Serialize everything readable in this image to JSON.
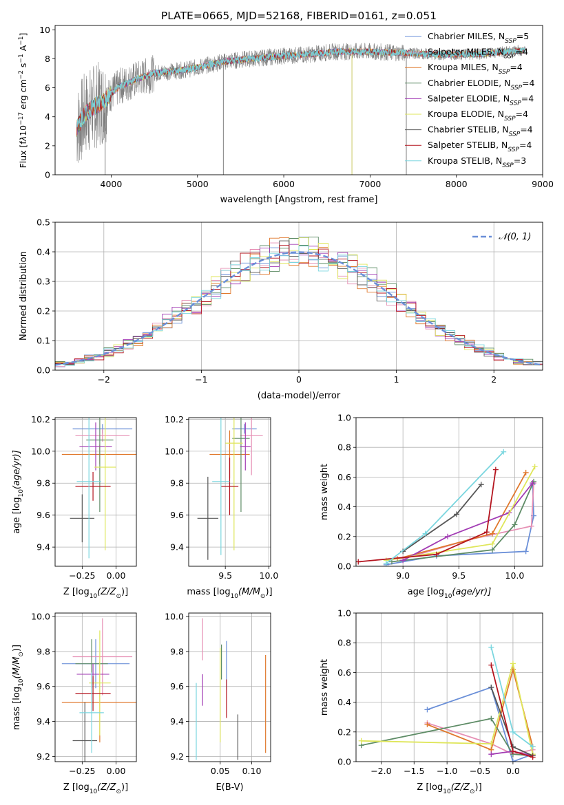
{
  "chart_data": [
    {
      "id": "spectrum",
      "type": "line",
      "title": "PLATE=0665, MJD=52168, FIBERID=0161, z=0.051",
      "xlabel": "wavelength [Angstrom, rest frame]",
      "ylabel_parts": [
        "Flux [f",
        "λ",
        "10",
        "−17",
        " erg cm",
        "−2",
        " s",
        "−1",
        " A",
        "−1",
        "]"
      ],
      "xlim": [
        3350,
        9000
      ],
      "ylim": [
        0,
        10.3
      ],
      "xticks": [
        4000,
        5000,
        6000,
        7000,
        8000,
        9000
      ],
      "yticks": [
        0,
        2,
        4,
        6,
        8,
        10
      ],
      "grid": false,
      "legend_position": "upper-right",
      "continuum": [
        [
          3600,
          3.2
        ],
        [
          3700,
          4.2
        ],
        [
          3800,
          4.7
        ],
        [
          3900,
          5.0
        ],
        [
          4000,
          5.6
        ],
        [
          4100,
          6.1
        ],
        [
          4300,
          6.6
        ],
        [
          4500,
          7.0
        ],
        [
          4800,
          7.2
        ],
        [
          5000,
          7.4
        ],
        [
          5300,
          7.8
        ],
        [
          5600,
          8.0
        ],
        [
          6000,
          8.2
        ],
        [
          6300,
          8.3
        ],
        [
          6600,
          8.5
        ],
        [
          7000,
          8.5
        ],
        [
          7400,
          8.4
        ],
        [
          7800,
          8.3
        ],
        [
          8200,
          8.3
        ],
        [
          8600,
          8.5
        ],
        [
          8800,
          8.6
        ]
      ],
      "legend": [
        {
          "main": "Chabrier MILES, N",
          "sub": "SSP",
          "tail": "=5",
          "color": "#6a8fd8"
        },
        {
          "main": "Salpeter MILES, N",
          "sub": "SSP",
          "tail": "=4",
          "color": "#e68fb4"
        },
        {
          "main": "Kroupa MILES, N",
          "sub": "SSP",
          "tail": "=4",
          "color": "#e0782c"
        },
        {
          "main": "Chabrier ELODIE, N",
          "sub": "SSP",
          "tail": "=4",
          "color": "#5e8c66"
        },
        {
          "main": "Salpeter ELODIE, N",
          "sub": "SSP",
          "tail": "=4",
          "color": "#a23cb4"
        },
        {
          "main": "Kroupa ELODIE, N",
          "sub": "SSP",
          "tail": "=4",
          "color": "#dfe65a"
        },
        {
          "main": "Chabrier STELIB, N",
          "sub": "SSP",
          "tail": "=4",
          "color": "#555555"
        },
        {
          "main": "Salpeter STELIB, N",
          "sub": "SSP",
          "tail": "=4",
          "color": "#b4141e"
        },
        {
          "main": "Kroupa STELIB, N",
          "sub": "SSP",
          "tail": "=3",
          "color": "#7ad6df"
        }
      ]
    },
    {
      "id": "residuals",
      "type": "line",
      "xlabel": "(data-model)/error",
      "ylabel": "Normed distribution",
      "xlim": [
        -2.5,
        2.5
      ],
      "ylim": [
        0,
        0.5
      ],
      "xticks": [
        -2,
        -1,
        0,
        1,
        2
      ],
      "yticks": [
        0.0,
        0.1,
        0.2,
        0.3,
        0.4,
        0.5
      ],
      "grid": true,
      "legend_position": "upper-right",
      "legend_math": "𝒩(0, 1)",
      "gaussian": {
        "mean": 0,
        "sigma": 1,
        "color": "#6a8fd8"
      },
      "bin_width": 0.1,
      "histogram_base": [
        0.02,
        0.022,
        0.025,
        0.03,
        0.035,
        0.04,
        0.047,
        0.055,
        0.063,
        0.072,
        0.082,
        0.093,
        0.105,
        0.118,
        0.132,
        0.147,
        0.163,
        0.18,
        0.197,
        0.215,
        0.233,
        0.25,
        0.27,
        0.29,
        0.31,
        0.33,
        0.35,
        0.37,
        0.385,
        0.4,
        0.42,
        0.43,
        0.44,
        0.445,
        0.43,
        0.42,
        0.41,
        0.39,
        0.37,
        0.35,
        0.33,
        0.31,
        0.29,
        0.27,
        0.25,
        0.23,
        0.21,
        0.19,
        0.17,
        0.15,
        0.13,
        0.115,
        0.1,
        0.088,
        0.077,
        0.067,
        0.058,
        0.05,
        0.043,
        0.037,
        0.032,
        0.028,
        0.025,
        0.022,
        0.02,
        0.03,
        0.025,
        0.04,
        0.02,
        0.02
      ]
    },
    {
      "id": "age-vs-Z",
      "type": "scatter",
      "xlabel_parts": [
        "Z [log",
        "10",
        "(Z/Z",
        "⊙",
        ")]"
      ],
      "ylabel_parts": [
        "age  [log",
        "10",
        "(age/yr)]"
      ],
      "xlim": [
        -0.45,
        0.15
      ],
      "ylim": [
        9.28,
        10.21
      ],
      "xticks": [
        -0.25,
        0.0
      ],
      "xticklabels": [
        "−0.25",
        "0.00"
      ],
      "yticks": [
        9.4,
        9.6,
        9.8,
        10.0,
        10.2
      ],
      "grid": true,
      "points": [
        {
          "x": -0.1,
          "y": 10.14,
          "xerr": 0.22,
          "yerr": 0.03,
          "color": "#6a8fd8"
        },
        {
          "x": -0.1,
          "y": 10.1,
          "xerr": 0.2,
          "yerr": 0.04,
          "color": "#e68fb4"
        },
        {
          "x": -0.12,
          "y": 9.98,
          "xerr": 0.28,
          "yerr": 0.06,
          "color": "#e0782c"
        },
        {
          "x": -0.12,
          "y": 10.07,
          "xerr": 0.1,
          "yerr": 0.45,
          "color": "#5e8c66"
        },
        {
          "x": -0.15,
          "y": 10.03,
          "xerr": 0.12,
          "yerr": 0.15,
          "color": "#a23cb4"
        },
        {
          "x": -0.08,
          "y": 9.9,
          "xerr": 0.08,
          "yerr": 0.52,
          "color": "#dfe65a"
        },
        {
          "x": -0.25,
          "y": 9.58,
          "xerr": 0.09,
          "yerr": 0.15,
          "color": "#555555"
        },
        {
          "x": -0.17,
          "y": 9.78,
          "xerr": 0.13,
          "yerr": 0.09,
          "color": "#b4141e"
        },
        {
          "x": -0.2,
          "y": 9.81,
          "xerr": 0.09,
          "yerr": 0.48,
          "color": "#7ad6df"
        }
      ]
    },
    {
      "id": "age-vs-mass",
      "type": "scatter",
      "xlabel_parts": [
        "mass [log",
        "10",
        "(M/M",
        "⊙",
        ")]"
      ],
      "ylabel_parts": [],
      "xlim": [
        9.08,
        10.02
      ],
      "ylim": [
        9.28,
        10.21
      ],
      "xticks": [
        9.5,
        10.0
      ],
      "xticklabels": [
        "9.5",
        "10.0"
      ],
      "yticks": [
        9.4,
        9.6,
        9.8,
        10.0,
        10.2
      ],
      "grid": true,
      "points": [
        {
          "x": 9.72,
          "y": 10.14,
          "xerr": 0.14,
          "yerr": 0.03,
          "color": "#6a8fd8"
        },
        {
          "x": 9.8,
          "y": 10.1,
          "xerr": 0.13,
          "yerr": 0.25,
          "color": "#e68fb4"
        },
        {
          "x": 9.55,
          "y": 9.98,
          "xerr": 0.23,
          "yerr": 0.15,
          "color": "#e0782c"
        },
        {
          "x": 9.68,
          "y": 10.08,
          "xerr": 0.1,
          "yerr": 0.46,
          "color": "#5e8c66"
        },
        {
          "x": 9.73,
          "y": 10.03,
          "xerr": 0.06,
          "yerr": 0.15,
          "color": "#a23cb4"
        },
        {
          "x": 9.6,
          "y": 10.05,
          "xerr": 0.1,
          "yerr": 0.67,
          "color": "#dfe65a"
        },
        {
          "x": 9.3,
          "y": 9.58,
          "xerr": 0.12,
          "yerr": 0.26,
          "color": "#555555"
        },
        {
          "x": 9.55,
          "y": 9.78,
          "xerr": 0.1,
          "yerr": 0.18,
          "color": "#b4141e"
        },
        {
          "x": 9.45,
          "y": 9.81,
          "xerr": 0.1,
          "yerr": 0.46,
          "color": "#7ad6df"
        }
      ]
    },
    {
      "id": "weight-vs-age",
      "type": "line",
      "xlabel_parts": [
        "age  [log",
        "10",
        "(age/yr)]"
      ],
      "ylabel": "mass weight",
      "xlim": [
        8.58,
        10.25
      ],
      "ylim": [
        0,
        1.0
      ],
      "xticks": [
        9.0,
        9.5,
        10.0
      ],
      "xticklabels": [
        "9.0",
        "9.5",
        "10.0"
      ],
      "yticks": [
        0.0,
        0.2,
        0.4,
        0.6,
        0.8,
        1.0
      ],
      "grid": true,
      "series": [
        {
          "color": "#6a8fd8",
          "points": [
            [
              8.85,
              0.01
            ],
            [
              9.3,
              0.07
            ],
            [
              10.1,
              0.1
            ],
            [
              10.17,
              0.34
            ],
            [
              10.16,
              0.55
            ]
          ]
        },
        {
          "color": "#e68fb4",
          "points": [
            [
              9.0,
              0.05
            ],
            [
              9.6,
              0.18
            ],
            [
              10.15,
              0.27
            ],
            [
              10.17,
              0.56
            ]
          ]
        },
        {
          "color": "#e0782c",
          "points": [
            [
              8.95,
              0.05
            ],
            [
              9.8,
              0.22
            ],
            [
              10.1,
              0.63
            ]
          ]
        },
        {
          "color": "#5e8c66",
          "points": [
            [
              8.9,
              0.03
            ],
            [
              9.8,
              0.11
            ],
            [
              10.0,
              0.28
            ],
            [
              10.17,
              0.57
            ]
          ]
        },
        {
          "color": "#a23cb4",
          "points": [
            [
              9.0,
              0.04
            ],
            [
              9.4,
              0.2
            ],
            [
              9.95,
              0.36
            ],
            [
              10.16,
              0.56
            ]
          ]
        },
        {
          "color": "#dfe65a",
          "points": [
            [
              8.85,
              0.04
            ],
            [
              9.8,
              0.15
            ],
            [
              10.18,
              0.67
            ]
          ]
        },
        {
          "color": "#555555",
          "points": [
            [
              9.0,
              0.1
            ],
            [
              9.48,
              0.35
            ],
            [
              9.7,
              0.55
            ]
          ]
        },
        {
          "color": "#b4141e",
          "points": [
            [
              8.6,
              0.03
            ],
            [
              9.3,
              0.08
            ],
            [
              9.75,
              0.23
            ],
            [
              9.83,
              0.65
            ]
          ]
        },
        {
          "color": "#7ad6df",
          "points": [
            [
              8.85,
              0.02
            ],
            [
              9.2,
              0.22
            ],
            [
              9.9,
              0.77
            ]
          ]
        }
      ]
    },
    {
      "id": "mass-vs-Z",
      "type": "scatter",
      "xlabel_parts": [
        "Z [log",
        "10",
        "(Z/Z",
        "⊙",
        ")]"
      ],
      "ylabel_parts": [
        "mass [log",
        "10",
        "(M/M",
        "⊙",
        ")]"
      ],
      "xlim": [
        -0.45,
        0.15
      ],
      "ylim": [
        9.17,
        10.02
      ],
      "xticks": [
        -0.25,
        0.0
      ],
      "xticklabels": [
        "−0.25",
        "0.00"
      ],
      "yticks": [
        9.2,
        9.4,
        9.6,
        9.8,
        10.0
      ],
      "grid": true,
      "points": [
        {
          "x": -0.15,
          "y": 9.73,
          "xerr": 0.25,
          "yerr": 0.14,
          "color": "#6a8fd8"
        },
        {
          "x": -0.1,
          "y": 9.77,
          "xerr": 0.22,
          "yerr": 0.22,
          "color": "#e68fb4"
        },
        {
          "x": -0.12,
          "y": 9.51,
          "xerr": 0.28,
          "yerr": 0.23,
          "color": "#e0782c"
        },
        {
          "x": -0.18,
          "y": 9.73,
          "xerr": 0.12,
          "yerr": 0.14,
          "color": "#5e8c66"
        },
        {
          "x": -0.17,
          "y": 9.67,
          "xerr": 0.12,
          "yerr": 0.06,
          "color": "#a23cb4"
        },
        {
          "x": -0.12,
          "y": 9.62,
          "xerr": 0.08,
          "yerr": 0.3,
          "color": "#dfe65a"
        },
        {
          "x": -0.23,
          "y": 9.29,
          "xerr": 0.09,
          "yerr": 0.22,
          "color": "#555555"
        },
        {
          "x": -0.17,
          "y": 9.56,
          "xerr": 0.13,
          "yerr": 0.1,
          "color": "#b4141e"
        },
        {
          "x": -0.18,
          "y": 9.45,
          "xerr": 0.09,
          "yerr": 0.23,
          "color": "#7ad6df"
        }
      ]
    },
    {
      "id": "EBV",
      "type": "scatter",
      "xlabel": "E(B-V)",
      "ylabel_parts": [],
      "xlim": [
        0.0,
        0.13
      ],
      "ylim": [
        9.17,
        10.02
      ],
      "xticks": [
        0.05,
        0.1
      ],
      "xticklabels": [
        "0.05",
        "0.10"
      ],
      "yticks": [
        9.2,
        9.4,
        9.6,
        9.8,
        10.0
      ],
      "grid": true,
      "points": [
        {
          "x": 0.06,
          "y": 9.72,
          "yerr": 0.14,
          "color": "#6a8fd8"
        },
        {
          "x": 0.022,
          "y": 9.87,
          "yerr": 0.12,
          "color": "#e68fb4"
        },
        {
          "x": 0.122,
          "y": 9.5,
          "yerr": 0.28,
          "color": "#e0782c"
        },
        {
          "x": 0.052,
          "y": 9.74,
          "yerr": 0.1,
          "color": "#5e8c66"
        },
        {
          "x": 0.022,
          "y": 9.58,
          "yerr": 0.09,
          "color": "#a23cb4"
        },
        {
          "x": 0.05,
          "y": 9.55,
          "yerr": 0.27,
          "color": "#dfe65a"
        },
        {
          "x": 0.078,
          "y": 9.31,
          "yerr": 0.13,
          "color": "#555555"
        },
        {
          "x": 0.06,
          "y": 9.53,
          "yerr": 0.11,
          "color": "#b4141e"
        },
        {
          "x": 0.012,
          "y": 9.4,
          "yerr": 0.22,
          "color": "#7ad6df"
        }
      ]
    },
    {
      "id": "weight-vs-Z",
      "type": "line",
      "xlabel_parts": [
        "Z [log",
        "10",
        "(Z/Z",
        "⊙",
        ")]"
      ],
      "ylabel": "mass weight",
      "xlim": [
        -2.38,
        0.45
      ],
      "ylim": [
        0,
        1.0
      ],
      "xticks": [
        -2.0,
        -1.5,
        -1.0,
        -0.5,
        0.0
      ],
      "xticklabels": [
        "−2.0",
        "−1.5",
        "−1.0",
        "−0.5",
        "0.0"
      ],
      "yticks": [
        0.0,
        0.2,
        0.4,
        0.6,
        0.8,
        1.0
      ],
      "grid": true,
      "series": [
        {
          "color": "#6a8fd8",
          "points": [
            [
              -1.3,
              0.35
            ],
            [
              -0.33,
              0.5
            ],
            [
              0.0,
              0.0
            ],
            [
              0.3,
              0.05
            ]
          ]
        },
        {
          "color": "#e68fb4",
          "points": [
            [
              -1.3,
              0.26
            ],
            [
              -0.33,
              0.12
            ],
            [
              0.0,
              0.05
            ],
            [
              0.3,
              0.08
            ]
          ]
        },
        {
          "color": "#e0782c",
          "points": [
            [
              -1.3,
              0.25
            ],
            [
              -0.33,
              0.08
            ],
            [
              0.0,
              0.62
            ],
            [
              0.3,
              0.1
            ]
          ]
        },
        {
          "color": "#5e8c66",
          "points": [
            [
              -2.3,
              0.11
            ],
            [
              -0.33,
              0.29
            ],
            [
              0.0,
              0.05
            ],
            [
              0.3,
              0.04
            ]
          ]
        },
        {
          "color": "#a23cb4",
          "points": [
            [
              -0.33,
              0.05
            ],
            [
              0.0,
              0.07
            ],
            [
              0.3,
              0.04
            ]
          ]
        },
        {
          "color": "#dfe65a",
          "points": [
            [
              -2.3,
              0.14
            ],
            [
              -0.33,
              0.12
            ],
            [
              0.0,
              0.66
            ],
            [
              0.3,
              0.05
            ]
          ]
        },
        {
          "color": "#555555",
          "points": [
            [
              -0.33,
              0.5
            ],
            [
              0.0,
              0.1
            ],
            [
              0.3,
              0.04
            ]
          ]
        },
        {
          "color": "#b4141e",
          "points": [
            [
              -0.33,
              0.65
            ],
            [
              0.0,
              0.07
            ],
            [
              0.3,
              0.03
            ]
          ]
        },
        {
          "color": "#7ad6df",
          "points": [
            [
              -0.33,
              0.77
            ],
            [
              0.0,
              0.2
            ],
            [
              0.3,
              0.1
            ]
          ]
        }
      ]
    }
  ]
}
